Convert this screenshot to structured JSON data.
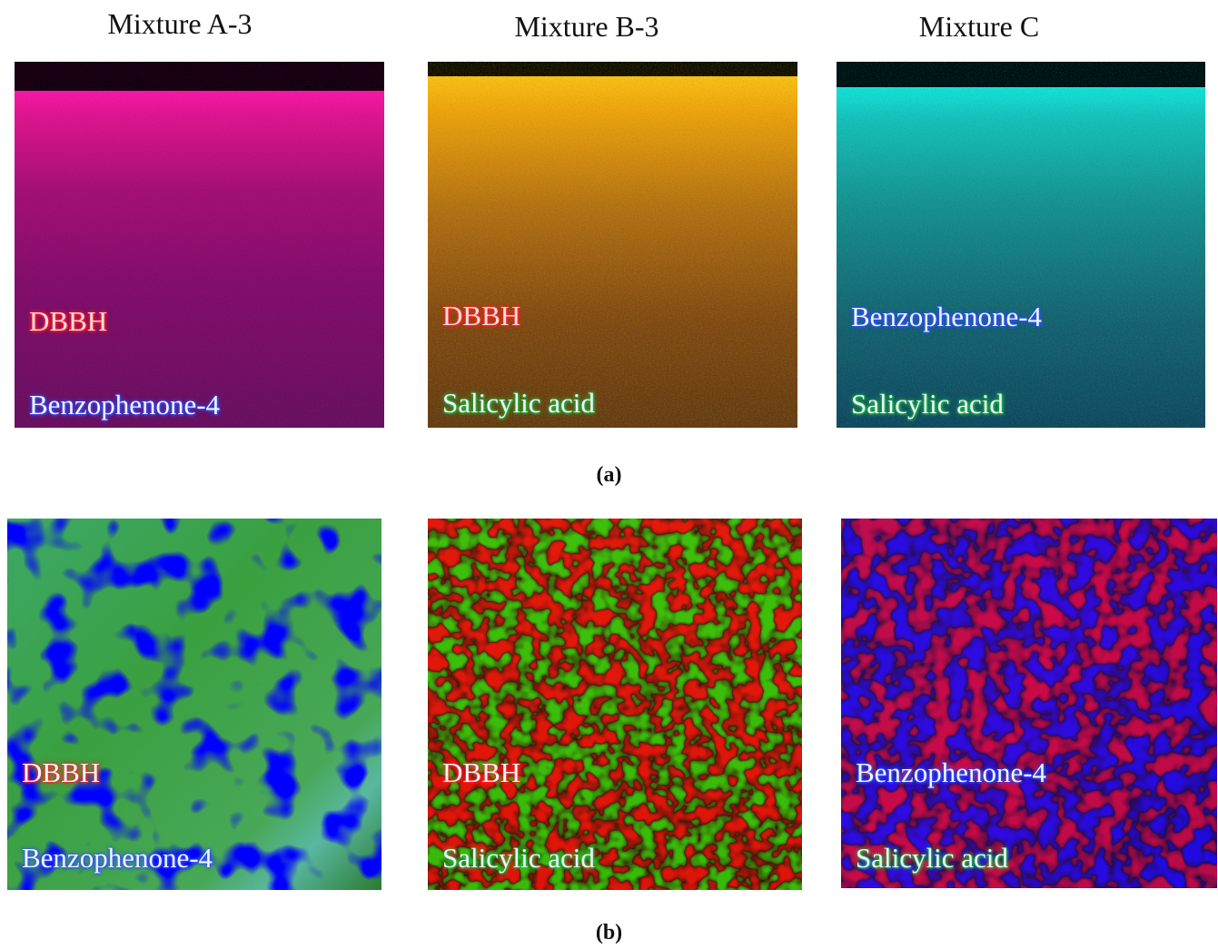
{
  "columns": [
    "Mixture A-3",
    "Mixture B-3",
    "Mixture C"
  ],
  "rows": [
    {
      "caption": "(a)",
      "panels": [
        [
          "DBBH",
          "Benzophenone-4"
        ],
        [
          "DBBH",
          "Salicylic acid"
        ],
        [
          "Benzophenone-4",
          "Salicylic acid"
        ]
      ]
    },
    {
      "caption": "(b)",
      "panels": [
        [
          "DBBH",
          "Benzophenone-4"
        ],
        [
          "DBBH",
          "Salicylic acid"
        ],
        [
          "Benzophenone-4",
          "Salicylic acid"
        ]
      ]
    }
  ]
}
